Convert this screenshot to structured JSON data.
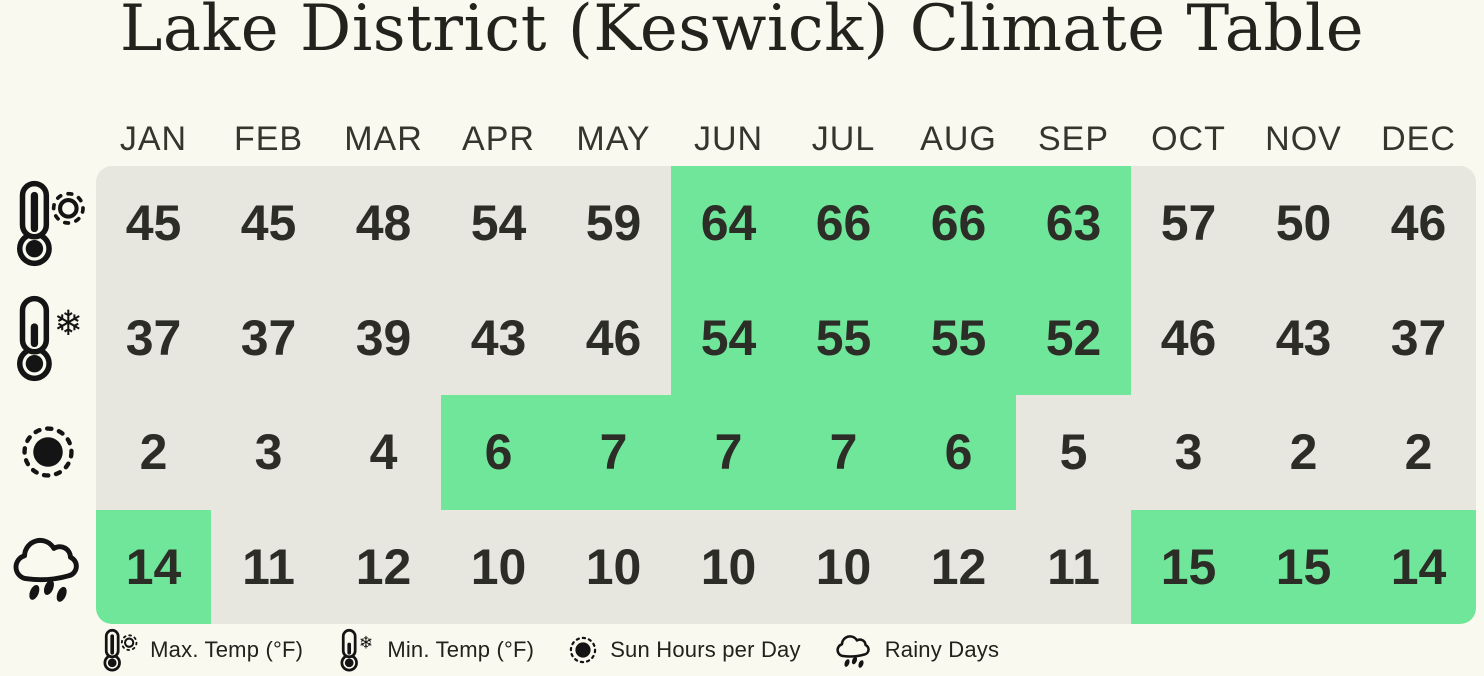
{
  "title": "Lake District (Keswick) Climate Table",
  "months": [
    "JAN",
    "FEB",
    "MAR",
    "APR",
    "MAY",
    "JUN",
    "JUL",
    "AUG",
    "SEP",
    "OCT",
    "NOV",
    "DEC"
  ],
  "chart_data": {
    "type": "table",
    "title": "Lake District (Keswick) Climate Table",
    "categories": [
      "JAN",
      "FEB",
      "MAR",
      "APR",
      "MAY",
      "JUN",
      "JUL",
      "AUG",
      "SEP",
      "OCT",
      "NOV",
      "DEC"
    ],
    "series": [
      {
        "name": "Max. Temp (°F)",
        "values": [
          45,
          45,
          48,
          54,
          59,
          64,
          66,
          66,
          63,
          57,
          50,
          46
        ],
        "highlighted_months": [
          "JUN",
          "JUL",
          "AUG",
          "SEP"
        ]
      },
      {
        "name": "Min. Temp (°F)",
        "values": [
          37,
          37,
          39,
          43,
          46,
          54,
          55,
          55,
          52,
          46,
          43,
          37
        ],
        "highlighted_months": [
          "JUN",
          "JUL",
          "AUG",
          "SEP"
        ]
      },
      {
        "name": "Sun Hours per Day",
        "values": [
          2,
          3,
          4,
          6,
          7,
          7,
          7,
          6,
          5,
          3,
          2,
          2
        ],
        "highlighted_months": [
          "APR",
          "MAY",
          "JUN",
          "JUL",
          "AUG"
        ]
      },
      {
        "name": "Rainy Days",
        "values": [
          14,
          11,
          12,
          10,
          10,
          10,
          10,
          12,
          11,
          15,
          15,
          14
        ],
        "highlighted_months": [
          "JAN",
          "OCT",
          "NOV",
          "DEC"
        ]
      }
    ],
    "legend_position": "bottom",
    "grid": false
  },
  "rows": [
    {
      "id": "max-temp",
      "icon": "thermometer-sun-icon",
      "values": [
        "45",
        "45",
        "48",
        "54",
        "59",
        "64",
        "66",
        "66",
        "63",
        "57",
        "50",
        "46"
      ],
      "highlight": [
        5,
        6,
        7,
        8
      ]
    },
    {
      "id": "min-temp",
      "icon": "thermometer-snowflake-icon",
      "values": [
        "37",
        "37",
        "39",
        "43",
        "46",
        "54",
        "55",
        "55",
        "52",
        "46",
        "43",
        "37"
      ],
      "highlight": [
        5,
        6,
        7,
        8
      ]
    },
    {
      "id": "sun-hours",
      "icon": "sun-icon",
      "values": [
        "2",
        "3",
        "4",
        "6",
        "7",
        "7",
        "7",
        "6",
        "5",
        "3",
        "2",
        "2"
      ],
      "highlight": [
        3,
        4,
        5,
        6,
        7
      ]
    },
    {
      "id": "rainy-days",
      "icon": "rain-cloud-icon",
      "values": [
        "14",
        "11",
        "12",
        "10",
        "10",
        "10",
        "10",
        "12",
        "11",
        "15",
        "15",
        "14"
      ],
      "highlight": [
        0,
        9,
        10,
        11
      ]
    }
  ],
  "legend": [
    {
      "icon": "thermometer-sun-icon",
      "label": "Max. Temp (°F)"
    },
    {
      "icon": "thermometer-snowflake-icon",
      "label": "Min. Temp (°F)"
    },
    {
      "icon": "sun-icon",
      "label": "Sun Hours per Day"
    },
    {
      "icon": "rain-cloud-icon",
      "label": "Rainy Days"
    }
  ],
  "colors": {
    "background": "#FAF9EF",
    "cell_default": "#E7E6DF",
    "cell_highlight": "#6FE69A",
    "text": "#2E2E28"
  }
}
